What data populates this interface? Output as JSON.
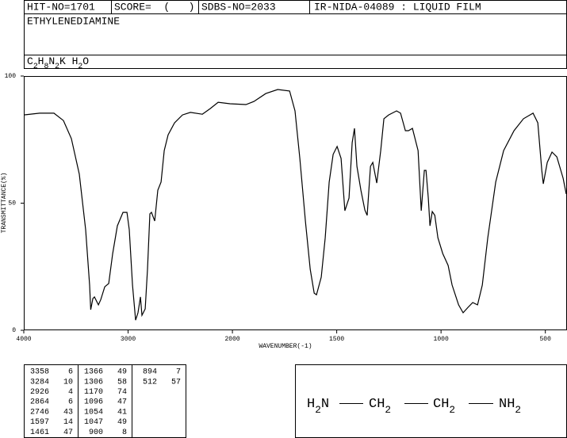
{
  "header": {
    "hit_no": "HIT-NO=1701",
    "score": "SCORE=  (   )",
    "sdbs_no": "SDBS-NO=2033",
    "method": "IR-NIDA-04089 : LIQUID FILM",
    "name": "ETHYLENEDIAMINE",
    "formula": [
      "C",
      "2",
      "H",
      "8",
      "N",
      "2",
      "K H",
      "2",
      "O"
    ]
  },
  "chart_data": {
    "type": "line",
    "x_label": "WAVENUMBER(-1)",
    "y_label": "TRANSMITTANCE(%)",
    "xlim": [
      4000,
      400
    ],
    "scale_break": 2000,
    "ylim": [
      0,
      100
    ],
    "xticks": [
      4000,
      3000,
      2000,
      1500,
      1000,
      500
    ],
    "yticks": [
      0,
      50,
      100
    ],
    "color": "#000000",
    "x": [
      4000,
      3848,
      3711,
      3620,
      3544,
      3468,
      3407,
      3369,
      3358,
      3338,
      3323,
      3285,
      3262,
      3224,
      3186,
      3148,
      3103,
      3049,
      3011,
      2989,
      2958,
      2928,
      2905,
      2882,
      2867,
      2836,
      2814,
      2791,
      2776,
      2745,
      2715,
      2684,
      2654,
      2616,
      2555,
      2479,
      2403,
      2289,
      2213,
      2137,
      2023,
      1935,
      1897,
      1840,
      1783,
      1726,
      1700,
      1677,
      1650,
      1627,
      1608,
      1597,
      1574,
      1555,
      1536,
      1517,
      1498,
      1479,
      1468,
      1461,
      1441,
      1426,
      1415,
      1403,
      1384,
      1365,
      1354,
      1338,
      1327,
      1308,
      1289,
      1274,
      1251,
      1213,
      1194,
      1171,
      1156,
      1137,
      1110,
      1095,
      1080,
      1072,
      1061,
      1053,
      1042,
      1030,
      1015,
      992,
      966,
      947,
      916,
      894,
      871,
      848,
      825,
      802,
      776,
      738,
      700,
      650,
      605,
      559,
      536,
      517,
      510,
      491,
      468,
      445,
      415,
      400
    ],
    "values": [
      84.7,
      85.4,
      85.4,
      82.5,
      75.4,
      61.4,
      39.6,
      17.8,
      8.1,
      12.5,
      13.1,
      10,
      12.1,
      17.1,
      18.4,
      30.2,
      41.1,
      46.4,
      46.4,
      39.6,
      17.8,
      4,
      6.9,
      13.1,
      5.9,
      8.4,
      24,
      45.8,
      46.4,
      43,
      55.1,
      58.3,
      70.7,
      76.9,
      81.6,
      84.7,
      85.7,
      85,
      87.2,
      89.7,
      89.1,
      88.8,
      90,
      93.1,
      94.7,
      94.1,
      86.3,
      67.6,
      42.7,
      24,
      14.6,
      14,
      20.9,
      36.4,
      58.3,
      69.2,
      72.3,
      67.6,
      55.1,
      47,
      52,
      73.8,
      79.4,
      64.5,
      55.1,
      47.3,
      45.2,
      64.5,
      66,
      57.9,
      70.7,
      83.2,
      84.7,
      86.3,
      85.4,
      78.5,
      78.5,
      79.4,
      70.7,
      47,
      62.9,
      62.9,
      52,
      41.1,
      46.7,
      45.2,
      36.4,
      30.2,
      25.5,
      17.8,
      10,
      6.9,
      9,
      10.9,
      10,
      17.8,
      36.4,
      58.3,
      70.7,
      78.5,
      83.2,
      85.4,
      81.6,
      62.9,
      57.6,
      66,
      70.1,
      68.2,
      59.8,
      53.6
    ]
  },
  "peaks": [
    [
      3358,
      6
    ],
    [
      3284,
      10
    ],
    [
      2926,
      4
    ],
    [
      2864,
      6
    ],
    [
      2746,
      43
    ],
    [
      1597,
      14
    ],
    [
      1461,
      47
    ],
    [
      1366,
      49
    ],
    [
      1306,
      58
    ],
    [
      1170,
      74
    ],
    [
      1096,
      47
    ],
    [
      1054,
      41
    ],
    [
      1047,
      49
    ],
    [
      900,
      8
    ],
    [
      894,
      7
    ],
    [
      512,
      57
    ]
  ],
  "structure": [
    [
      "H",
      "2",
      "N"
    ],
    [
      "CH",
      "2"
    ],
    [
      "CH",
      "2"
    ],
    [
      "NH",
      "2"
    ]
  ]
}
